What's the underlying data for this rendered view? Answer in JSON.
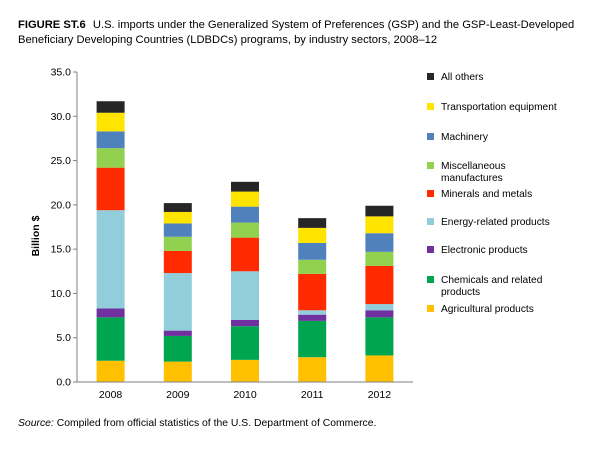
{
  "figure": {
    "label": "FIGURE ST.6",
    "title": "U.S. imports under the Generalized System of Preferences (GSP) and the GSP-Least-Developed Beneficiary Developing Countries (LDBDCs) programs, by industry sectors, 2008–12"
  },
  "source": {
    "label": "Source:",
    "text": "Compiled from official statistics of the U.S. Department of Commerce."
  },
  "chart_data": {
    "type": "bar",
    "stacked": true,
    "categories": [
      "2008",
      "2009",
      "2010",
      "2011",
      "2012"
    ],
    "ylabel": "Billion $",
    "ylim": [
      0,
      35
    ],
    "yticks": [
      "0.0",
      "5.0",
      "10.0",
      "15.0",
      "20.0",
      "25.0",
      "30.0",
      "35.0"
    ],
    "grid": false,
    "legend_position": "right",
    "series": [
      {
        "name": "Agricultural products",
        "color": "#ffc000",
        "values": [
          2.4,
          2.3,
          2.5,
          2.8,
          3.0
        ]
      },
      {
        "name": "Chemicals and related products",
        "color": "#00a550",
        "values": [
          4.9,
          2.9,
          3.8,
          4.1,
          4.3
        ]
      },
      {
        "name": "Electronic products",
        "color": "#7030a0",
        "values": [
          1.0,
          0.6,
          0.7,
          0.7,
          0.8
        ]
      },
      {
        "name": "Energy-related products",
        "color": "#92cddc",
        "values": [
          11.1,
          6.5,
          5.5,
          0.5,
          0.7
        ]
      },
      {
        "name": "Minerals and metals",
        "color": "#ff2a00",
        "values": [
          4.8,
          2.5,
          3.8,
          4.1,
          4.3
        ]
      },
      {
        "name": "Miscellaneous manufactures",
        "color": "#92d050",
        "values": [
          2.2,
          1.6,
          1.7,
          1.6,
          1.6
        ]
      },
      {
        "name": "Machinery",
        "color": "#4f81bd",
        "values": [
          1.9,
          1.5,
          1.8,
          1.9,
          2.1
        ]
      },
      {
        "name": "Transportation equipment",
        "color": "#ffe400",
        "values": [
          2.1,
          1.3,
          1.7,
          1.7,
          1.9
        ]
      },
      {
        "name": "All others",
        "color": "#262626",
        "values": [
          1.3,
          1.0,
          1.1,
          1.1,
          1.2
        ]
      }
    ]
  }
}
